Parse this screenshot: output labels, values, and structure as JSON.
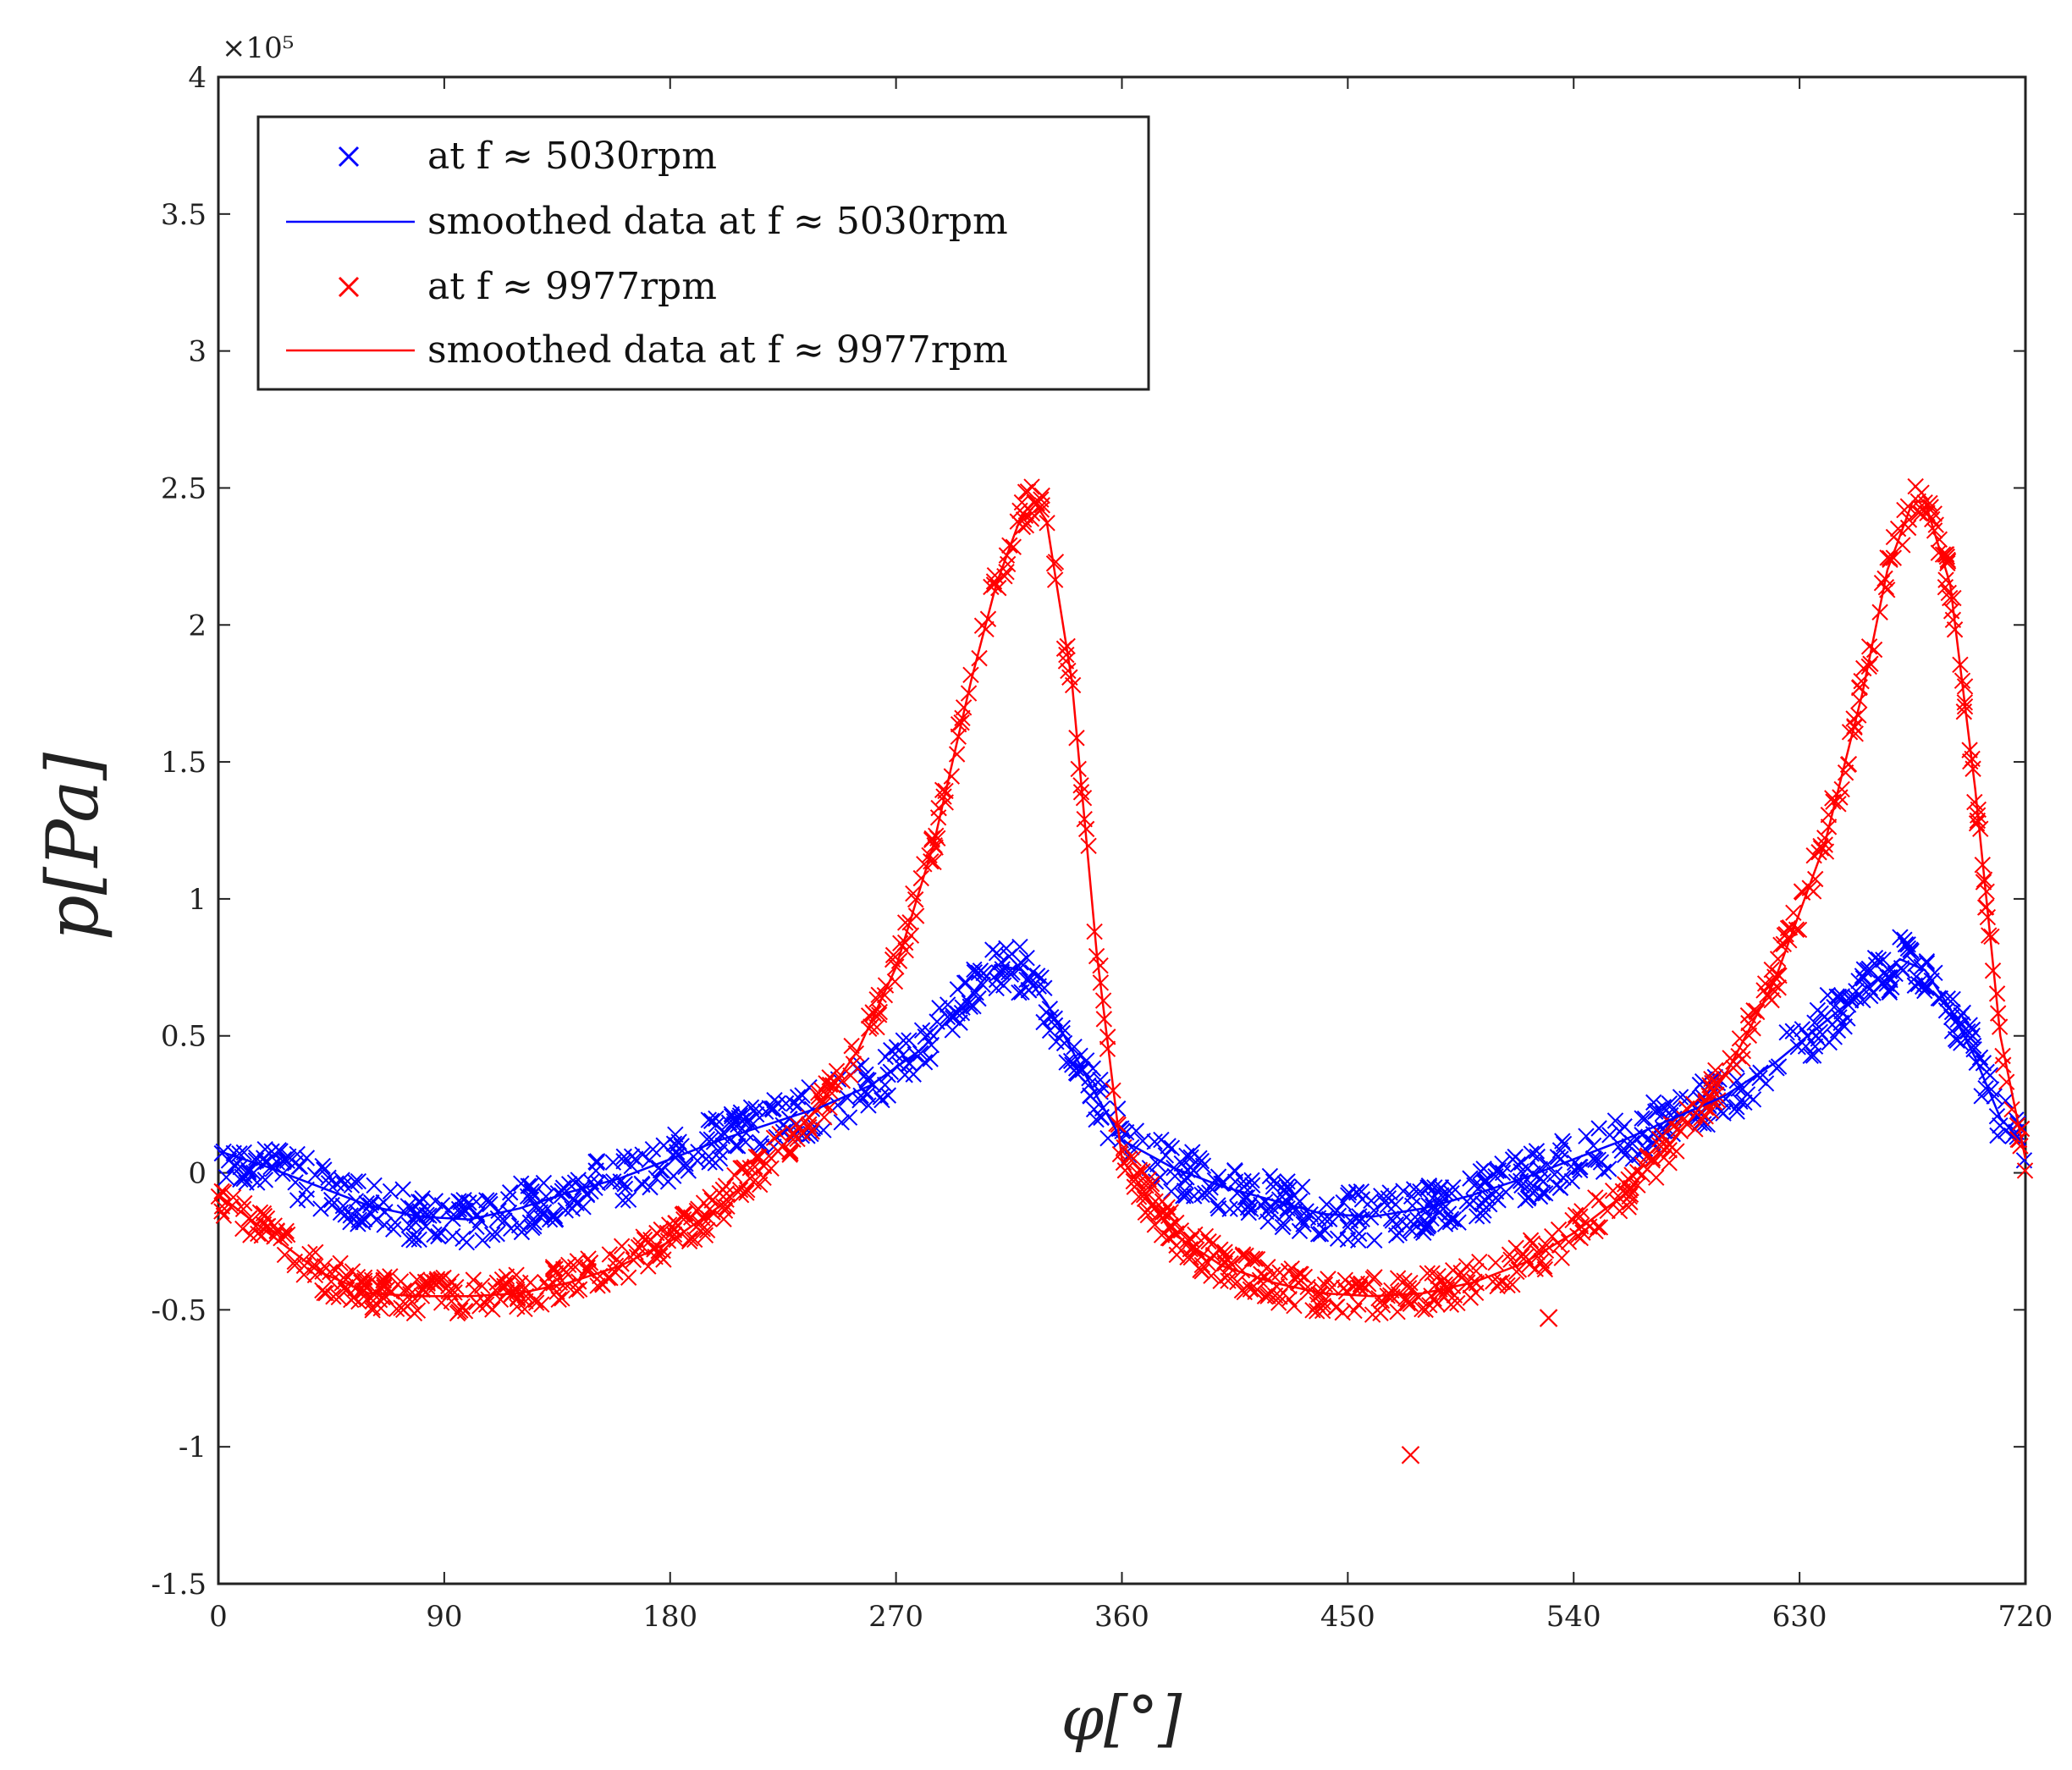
{
  "chart_data": {
    "type": "scatter",
    "title": "",
    "xlabel": "φ[°]",
    "ylabel": "p[Pa]",
    "exponent_label": "×10⁵",
    "xlim": [
      0,
      720
    ],
    "ylim": [
      -1.5,
      4
    ],
    "xticks": [
      "0",
      "90",
      "180",
      "270",
      "360",
      "450",
      "540",
      "630",
      "720"
    ],
    "yticks": [
      "-1.5",
      "-1",
      "-0.5",
      "0",
      "0.5",
      "1",
      "1.5",
      "2",
      "2.5",
      "3",
      "3.5",
      "4"
    ],
    "legend_position": "top-left",
    "legend": [
      {
        "label": "at f ≈ 5030rpm",
        "marker": "x",
        "color": "#0000ff"
      },
      {
        "label": "smoothed data at f ≈ 5030rpm",
        "marker": "line",
        "color": "#0000ff"
      },
      {
        "label": "at f ≈ 9977rpm",
        "marker": "x",
        "color": "#ff0000"
      },
      {
        "label": "smoothed data at f ≈ 9977rpm",
        "marker": "line",
        "color": "#ff0000"
      }
    ],
    "series": [
      {
        "name": "smoothed data at f ≈ 5030rpm",
        "color": "#0000ff",
        "x": [
          0,
          20,
          40,
          60,
          80,
          100,
          120,
          140,
          160,
          180,
          200,
          220,
          240,
          260,
          280,
          300,
          310,
          320,
          330,
          340,
          350,
          360,
          380,
          400,
          420,
          440,
          460,
          480,
          500,
          520,
          540,
          560,
          580,
          600,
          620,
          640,
          660,
          670,
          680,
          690,
          700,
          710,
          720
        ],
        "y": [
          0.08,
          0.02,
          -0.05,
          -0.12,
          -0.16,
          -0.17,
          -0.13,
          -0.07,
          -0.02,
          0.05,
          0.12,
          0.18,
          0.24,
          0.32,
          0.45,
          0.65,
          0.76,
          0.74,
          0.62,
          0.45,
          0.28,
          0.12,
          0.02,
          -0.05,
          -0.1,
          -0.15,
          -0.16,
          -0.13,
          -0.08,
          -0.02,
          0.05,
          0.12,
          0.2,
          0.28,
          0.4,
          0.55,
          0.7,
          0.78,
          0.74,
          0.6,
          0.42,
          0.2,
          0.1
        ]
      },
      {
        "name": "smoothed data at f ≈ 9977rpm",
        "color": "#ff0000",
        "x": [
          0,
          20,
          40,
          60,
          80,
          100,
          120,
          140,
          160,
          180,
          200,
          220,
          240,
          255,
          270,
          285,
          300,
          310,
          320,
          325,
          330,
          340,
          350,
          360,
          380,
          400,
          420,
          440,
          460,
          480,
          500,
          520,
          540,
          560,
          580,
          600,
          620,
          640,
          655,
          665,
          675,
          680,
          690,
          700,
          710,
          720
        ],
        "y": [
          -0.08,
          -0.22,
          -0.36,
          -0.44,
          -0.45,
          -0.45,
          -0.44,
          -0.4,
          -0.34,
          -0.25,
          -0.12,
          0.05,
          0.25,
          0.45,
          0.75,
          1.2,
          1.8,
          2.15,
          2.4,
          2.45,
          2.38,
          1.8,
          0.8,
          0.05,
          -0.22,
          -0.34,
          -0.4,
          -0.44,
          -0.45,
          -0.44,
          -0.4,
          -0.33,
          -0.22,
          -0.08,
          0.12,
          0.35,
          0.7,
          1.2,
          1.75,
          2.2,
          2.45,
          2.45,
          2.15,
          1.4,
          0.5,
          0.05
        ]
      }
    ]
  }
}
